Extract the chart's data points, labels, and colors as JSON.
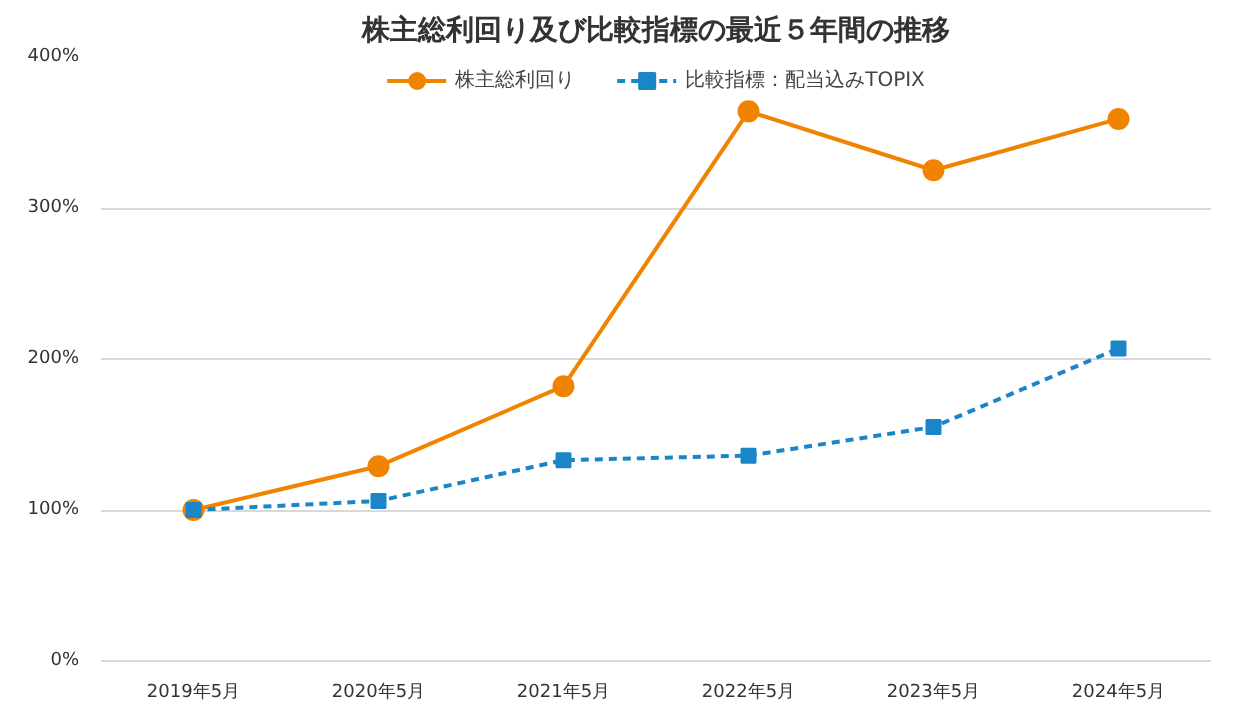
{
  "chart_data": {
    "type": "line",
    "title": "株主総利回り及び比較指標の最近５年間の推移",
    "categories": [
      "2019年5月",
      "2020年5月",
      "2021年5月",
      "2022年5月",
      "2023年5月",
      "2024年5月"
    ],
    "series": [
      {
        "name": "株主総利回り",
        "color": "#f08300",
        "values": [
          100,
          129,
          182,
          364,
          325,
          359
        ],
        "marker": "circle",
        "line_style": "solid"
      },
      {
        "name": "比較指標：配当込みTOPIX",
        "color": "#1a86c7",
        "values": [
          100,
          106,
          133,
          136,
          155,
          207
        ],
        "marker": "square",
        "line_style": "dashed"
      }
    ],
    "ylim": [
      0,
      400
    ],
    "yticks": [
      {
        "value": 0,
        "label": "0%"
      },
      {
        "value": 100,
        "label": "100%"
      },
      {
        "value": 200,
        "label": "200%"
      },
      {
        "value": 300,
        "label": "300%"
      },
      {
        "value": 400,
        "label": "400%"
      }
    ],
    "grid": "y",
    "legend": "top"
  }
}
